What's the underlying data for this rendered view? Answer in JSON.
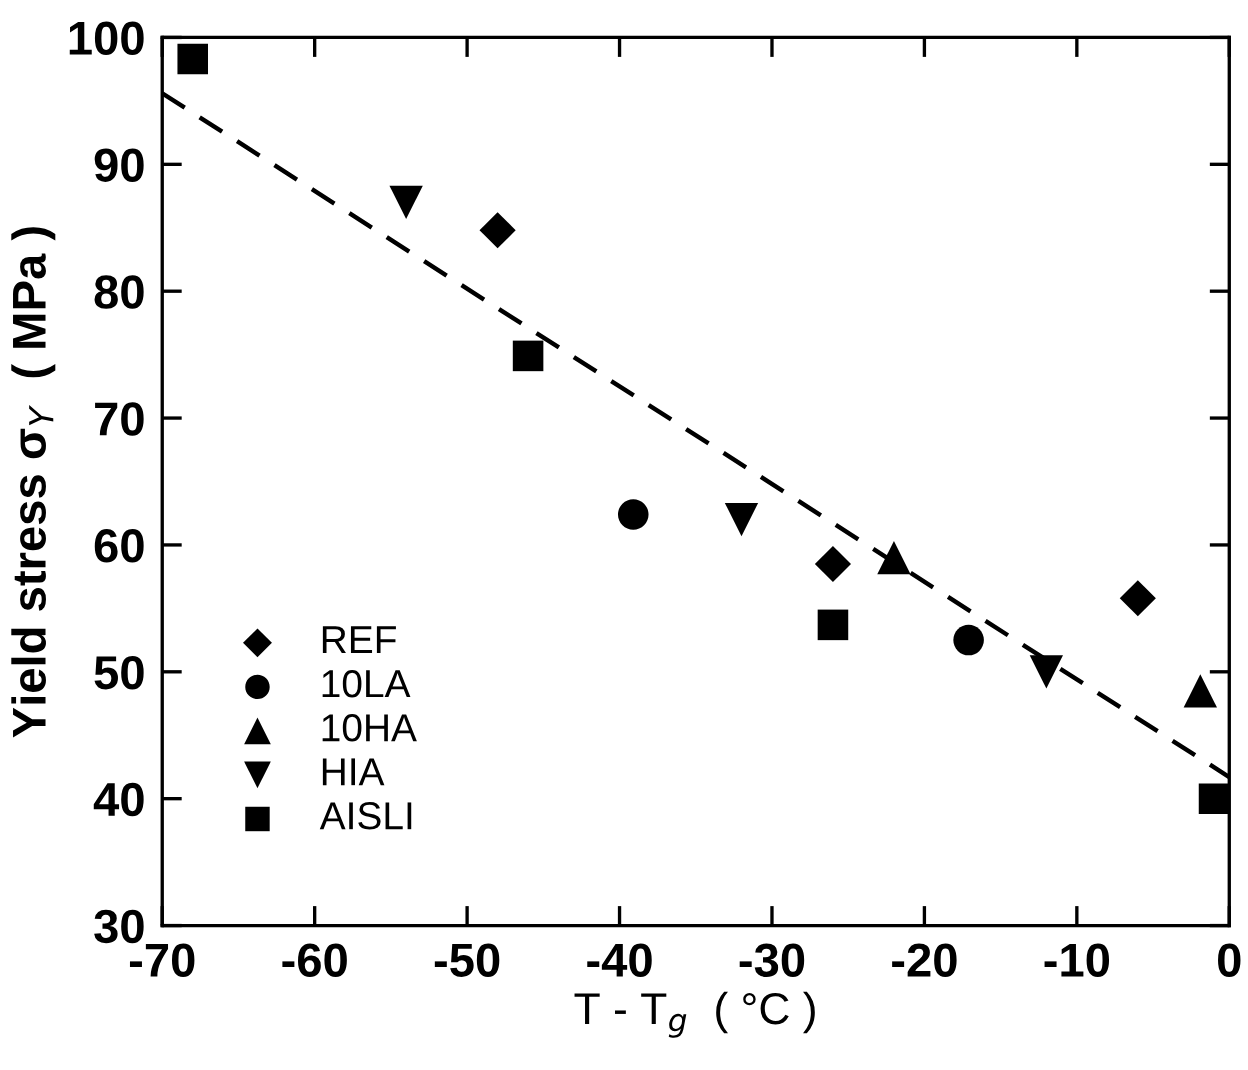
{
  "chart_data": {
    "type": "scatter",
    "xlabel": "T - T$_{g}$  ( °C )",
    "ylabel": "Yield stress σ$_{Y}$  ( MPa )",
    "xlim": [
      -70,
      0
    ],
    "ylim": [
      30,
      100
    ],
    "xticks": [
      -70,
      -60,
      -50,
      -40,
      -30,
      -20,
      -10,
      0
    ],
    "yticks": [
      30,
      40,
      50,
      60,
      70,
      80,
      90,
      100
    ],
    "grid": false,
    "legend": "bottom left",
    "series": [
      {
        "name": "REF",
        "color": "#000000",
        "marker": "diamond",
        "x": [
          -48.0,
          -26.0,
          -6.0
        ],
        "values": [
          84.8,
          58.5,
          55.8
        ]
      },
      {
        "name": "10LA",
        "color": "#000000",
        "marker": "circle",
        "x": [
          -39.1,
          -17.1
        ],
        "values": [
          62.4,
          52.5
        ]
      },
      {
        "name": "10HA",
        "color": "#000000",
        "marker": "triangle",
        "x": [
          -22.0,
          -1.9
        ],
        "values": [
          59.0,
          48.5
        ]
      },
      {
        "name": "HIA",
        "color": "#000000",
        "marker": "triangle_down",
        "x": [
          -54.0,
          -32.0,
          -12.0
        ],
        "values": [
          87.0,
          62.0,
          50.0
        ]
      },
      {
        "name": "AISLI",
        "color": "#000000",
        "marker": "square",
        "x": [
          -68.0,
          -46.0,
          -26.0,
          -1.0
        ],
        "values": [
          98.3,
          74.9,
          53.7,
          40.0
        ]
      },
      {
        "type": "line",
        "color": "#000000",
        "line_style": "dashed",
        "marker": "none",
        "x": [
          -70,
          0
        ],
        "values": [
          95.6,
          41.7
        ]
      }
    ]
  }
}
